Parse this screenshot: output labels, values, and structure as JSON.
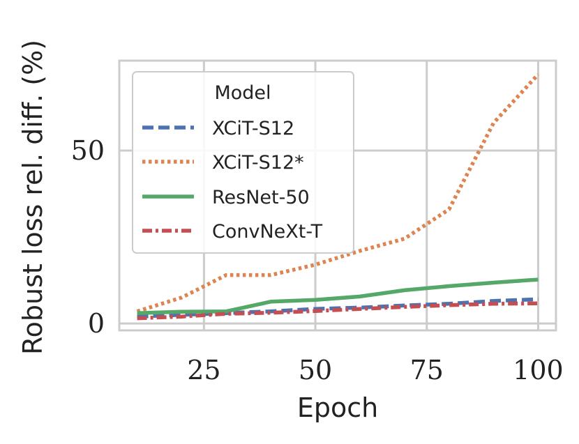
{
  "chart_data": {
    "type": "line",
    "title": "",
    "xlabel": "Epoch",
    "ylabel": "Robust loss rel. diff. (%)",
    "xlim": [
      6,
      104
    ],
    "ylim": [
      -2,
      76
    ],
    "xticks": [
      25,
      50,
      75,
      100
    ],
    "xtick_labels": [
      "25",
      "50",
      "75",
      "100"
    ],
    "yticks": [
      0,
      50
    ],
    "ytick_labels": [
      "0",
      "50"
    ],
    "grid": true,
    "legend": {
      "title": "Model",
      "position": "upper-left"
    },
    "x": [
      10,
      20,
      30,
      40,
      50,
      60,
      70,
      80,
      90,
      100
    ],
    "series": [
      {
        "name": "XCiT-S12",
        "color": "#4C72B0",
        "dash": "dashed",
        "values": [
          2.0,
          2.5,
          3.0,
          3.5,
          4.2,
          4.6,
          5.2,
          5.7,
          6.5,
          7.0
        ]
      },
      {
        "name": "XCiT-S12*",
        "color": "#DD8452",
        "dash": "dotted",
        "values": [
          3.5,
          7.5,
          14.0,
          14.0,
          17.0,
          21.0,
          24.5,
          33.0,
          58.0,
          72.0
        ]
      },
      {
        "name": "ResNet-50",
        "color": "#55A868",
        "dash": "solid",
        "values": [
          3.0,
          3.4,
          3.5,
          6.3,
          6.8,
          7.8,
          9.6,
          10.8,
          11.8,
          12.7
        ]
      },
      {
        "name": "ConvNeXt-T",
        "color": "#C44E52",
        "dash": "dashdot",
        "values": [
          1.5,
          2.0,
          2.8,
          3.1,
          3.6,
          4.2,
          4.8,
          5.3,
          5.7,
          5.8
        ]
      }
    ]
  }
}
